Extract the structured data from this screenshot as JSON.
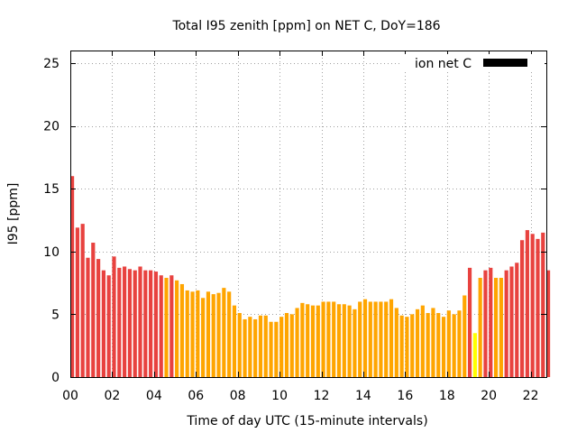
{
  "chart_data": {
    "type": "bar",
    "title": "Total I95 zenith [ppm] on NET C, DoY=186",
    "xlabel": "Time of day UTC (15-minute intervals)",
    "ylabel": "I95 [ppm]",
    "xlim": [
      0,
      22.75
    ],
    "ylim": [
      0,
      26
    ],
    "x_interval_hours": 0.25,
    "xticks": [
      0,
      2,
      4,
      6,
      8,
      10,
      12,
      14,
      16,
      18,
      20,
      22
    ],
    "xtick_labels": [
      "00",
      "02",
      "04",
      "06",
      "08",
      "10",
      "12",
      "14",
      "16",
      "18",
      "20",
      "22"
    ],
    "yticks": [
      0,
      5,
      10,
      15,
      20,
      25
    ],
    "ytick_labels": [
      "0",
      "5",
      "10",
      "15",
      "20",
      "25"
    ],
    "grid": true,
    "legend": {
      "label": "ion net C",
      "color": "#000000",
      "placement": "top-right"
    },
    "color_scale": {
      "red": "#e8423f",
      "orange": "#ffa500",
      "yellow": "#ffff00"
    },
    "values": [
      16.0,
      11.9,
      12.2,
      9.5,
      10.7,
      9.4,
      8.5,
      8.1,
      9.6,
      8.7,
      8.8,
      8.6,
      8.5,
      8.8,
      8.5,
      8.5,
      8.4,
      8.1,
      7.9,
      8.1,
      7.7,
      7.4,
      6.9,
      6.8,
      6.9,
      6.3,
      6.8,
      6.6,
      6.7,
      7.1,
      6.8,
      5.7,
      5.1,
      4.6,
      4.8,
      4.6,
      4.9,
      4.9,
      4.4,
      4.4,
      4.8,
      5.1,
      5.0,
      5.5,
      5.9,
      5.8,
      5.7,
      5.7,
      6.0,
      6.0,
      6.0,
      5.8,
      5.8,
      5.7,
      5.4,
      6.0,
      6.2,
      6.0,
      6.0,
      6.0,
      6.0,
      6.2,
      5.5,
      4.9,
      4.8,
      5.0,
      5.4,
      5.7,
      5.1,
      5.5,
      5.1,
      4.8,
      5.3,
      5.0,
      5.3,
      6.5,
      8.7,
      3.5,
      7.9,
      8.5,
      8.7,
      7.9,
      7.9,
      8.5,
      8.8,
      9.1,
      10.9,
      11.7,
      11.4,
      11.0,
      11.5,
      8.5
    ],
    "colors": [
      "red",
      "red",
      "red",
      "red",
      "red",
      "red",
      "red",
      "red",
      "red",
      "red",
      "red",
      "red",
      "red",
      "red",
      "red",
      "red",
      "red",
      "red",
      "orange",
      "red",
      "orange",
      "orange",
      "orange",
      "orange",
      "orange",
      "orange",
      "orange",
      "orange",
      "orange",
      "orange",
      "orange",
      "orange",
      "orange",
      "orange",
      "orange",
      "orange",
      "orange",
      "orange",
      "orange",
      "orange",
      "orange",
      "orange",
      "orange",
      "orange",
      "orange",
      "orange",
      "orange",
      "orange",
      "orange",
      "orange",
      "orange",
      "orange",
      "orange",
      "orange",
      "orange",
      "orange",
      "orange",
      "orange",
      "orange",
      "orange",
      "orange",
      "orange",
      "orange",
      "orange",
      "orange",
      "orange",
      "orange",
      "orange",
      "orange",
      "orange",
      "orange",
      "orange",
      "orange",
      "orange",
      "orange",
      "orange",
      "red",
      "yellow",
      "orange",
      "red",
      "red",
      "orange",
      "orange",
      "red",
      "red",
      "red",
      "red",
      "red",
      "red",
      "red",
      "red",
      "red"
    ]
  }
}
